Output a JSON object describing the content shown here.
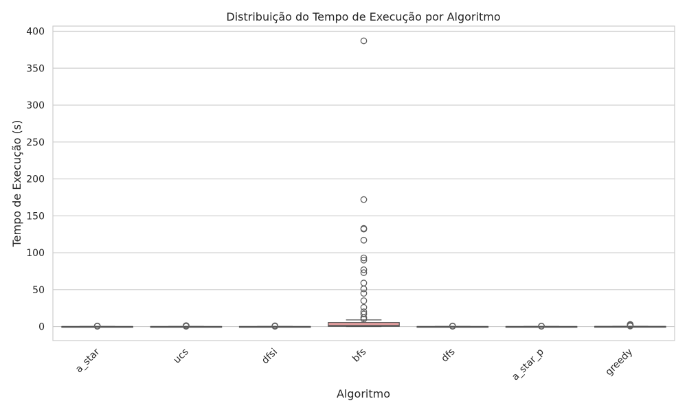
{
  "chart_data": {
    "type": "box",
    "title": "Distribuição do Tempo de Execução por Algoritmo",
    "xlabel": "Algoritmo",
    "ylabel": "Tempo de Execução (s)",
    "ylim": [
      -19,
      407
    ],
    "yticks": [
      0,
      50,
      100,
      150,
      200,
      250,
      300,
      350,
      400
    ],
    "grid": true,
    "tick_label_rotation": 45,
    "categories": [
      "a_star",
      "ucs",
      "dfsi",
      "bfs",
      "dfs",
      "a_star_p",
      "greedy"
    ],
    "boxes": [
      {
        "category": "a_star",
        "whisker_low": 0,
        "q1": 0,
        "median": 0,
        "q3": 0.1,
        "whisker_high": 0.2,
        "outliers": [
          0.4,
          0.6,
          0.8
        ],
        "color": "#8fb3d4"
      },
      {
        "category": "ucs",
        "whisker_low": 0,
        "q1": 0,
        "median": 0,
        "q3": 0.1,
        "whisker_high": 0.2,
        "outliers": [
          0.4,
          0.7,
          1.0,
          1.3
        ],
        "color": "#ddb28e"
      },
      {
        "category": "dfsi",
        "whisker_low": 0,
        "q1": 0,
        "median": 0,
        "q3": 0.1,
        "whisker_high": 0.2,
        "outliers": [
          0.4,
          0.7,
          1.0
        ],
        "color": "#8fc39a"
      },
      {
        "category": "bfs",
        "whisker_low": 0,
        "q1": 0.3,
        "median": 1.5,
        "q3": 5.5,
        "whisker_high": 9,
        "outliers": [
          10,
          12,
          17,
          20,
          26,
          35,
          45,
          51,
          59,
          73,
          77,
          90,
          93,
          117,
          132,
          133,
          172,
          387
        ],
        "color": "#e8a0a0"
      },
      {
        "category": "dfs",
        "whisker_low": 0,
        "q1": 0,
        "median": 0,
        "q3": 0.1,
        "whisker_high": 0.2,
        "outliers": [
          0.4,
          0.8
        ],
        "color": "#c3b3d8"
      },
      {
        "category": "a_star_p",
        "whisker_low": 0,
        "q1": 0,
        "median": 0,
        "q3": 0.1,
        "whisker_high": 0.2,
        "outliers": [
          0.4,
          0.7
        ],
        "color": "#c7aa98"
      },
      {
        "category": "greedy",
        "whisker_low": 0,
        "q1": 0,
        "median": 0.1,
        "q3": 0.2,
        "whisker_high": 0.4,
        "outliers": [
          0.7,
          1.3,
          2.2,
          2.9
        ],
        "color": "#f1b4dc"
      }
    ]
  }
}
